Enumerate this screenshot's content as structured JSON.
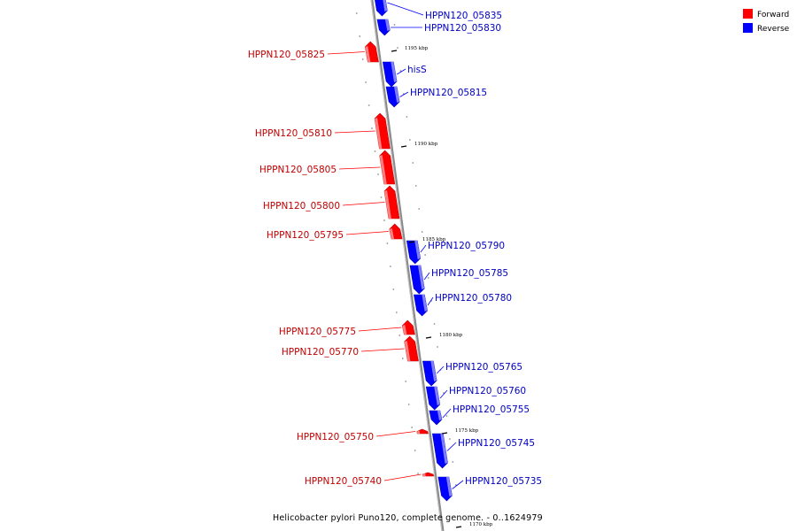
{
  "diagram": {
    "caption": "Helicobacter pylori Puno120, complete genome. - 0..1624979",
    "legend": [
      {
        "label": "Forward",
        "color": "#ff0000"
      },
      {
        "label": "Reverse",
        "color": "#0000ff"
      }
    ],
    "colors": {
      "forward": "#ff0000",
      "reverse": "#0000ff",
      "backbone": "#808080"
    },
    "kbp_marks": [
      "1195 kbp",
      "1190 kbp",
      "1185 kbp",
      "1180 kbp",
      "1175 kbp",
      "1170 kbp"
    ],
    "genes": [
      {
        "name": "HPPN120_05835",
        "strand": "reverse"
      },
      {
        "name": "HPPN120_05830",
        "strand": "reverse"
      },
      {
        "name": "HPPN120_05825",
        "strand": "forward"
      },
      {
        "name": "hisS",
        "strand": "reverse"
      },
      {
        "name": "HPPN120_05815",
        "strand": "reverse"
      },
      {
        "name": "HPPN120_05810",
        "strand": "forward"
      },
      {
        "name": "HPPN120_05805",
        "strand": "forward"
      },
      {
        "name": "HPPN120_05800",
        "strand": "forward"
      },
      {
        "name": "HPPN120_05795",
        "strand": "forward"
      },
      {
        "name": "HPPN120_05790",
        "strand": "reverse"
      },
      {
        "name": "HPPN120_05785",
        "strand": "reverse"
      },
      {
        "name": "HPPN120_05780",
        "strand": "reverse"
      },
      {
        "name": "HPPN120_05775",
        "strand": "forward"
      },
      {
        "name": "HPPN120_05770",
        "strand": "forward"
      },
      {
        "name": "HPPN120_05765",
        "strand": "reverse"
      },
      {
        "name": "HPPN120_05760",
        "strand": "reverse"
      },
      {
        "name": "HPPN120_05755",
        "strand": "reverse"
      },
      {
        "name": "HPPN120_05750",
        "strand": "forward"
      },
      {
        "name": "HPPN120_05745",
        "strand": "reverse"
      },
      {
        "name": "HPPN120_05740",
        "strand": "forward"
      },
      {
        "name": "HPPN120_05735",
        "strand": "reverse"
      }
    ]
  }
}
